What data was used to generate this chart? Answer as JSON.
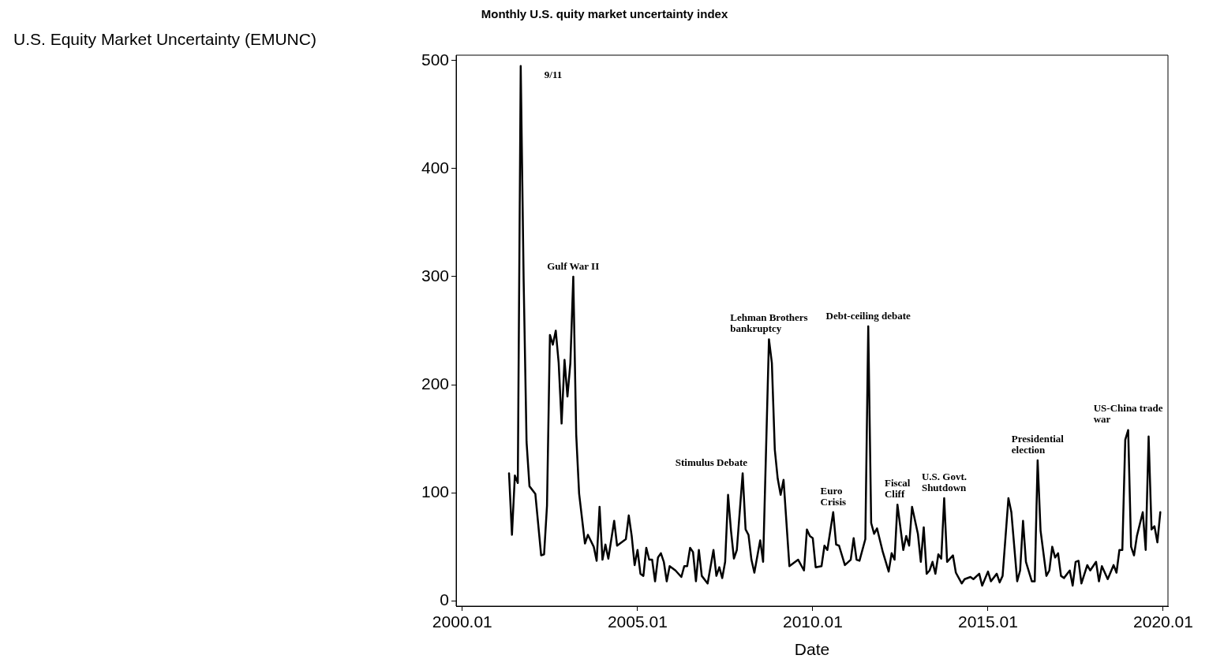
{
  "chart_data": {
    "type": "line",
    "title": "Monthly U.S. quity market uncertainty index",
    "xlabel": "Date",
    "x": [
      "2001-05",
      "2001-06",
      "2001-07",
      "2001-08",
      "2001-09",
      "2001-10",
      "2001-11",
      "2001-12",
      "2002-02",
      "2002-04",
      "2002-05",
      "2002-06",
      "2002-07",
      "2002-08",
      "2002-09",
      "2002-10",
      "2002-11",
      "2002-12",
      "2003-01",
      "2003-02",
      "2003-03",
      "2003-04",
      "2003-05",
      "2003-07",
      "2003-08",
      "2003-10",
      "2003-11",
      "2003-12",
      "2004-01",
      "2004-02",
      "2004-03",
      "2004-05",
      "2004-06",
      "2004-09",
      "2004-10",
      "2004-11",
      "2004-12",
      "2005-01",
      "2005-02",
      "2005-03",
      "2005-04",
      "2005-05",
      "2005-06",
      "2005-07",
      "2005-08",
      "2005-09",
      "2005-10",
      "2005-11",
      "2005-12",
      "2006-02",
      "2006-04",
      "2006-05",
      "2006-06",
      "2006-07",
      "2006-08",
      "2006-09",
      "2006-10",
      "2006-11",
      "2007-01",
      "2007-03",
      "2007-04",
      "2007-05",
      "2007-06",
      "2007-07",
      "2007-08",
      "2007-09",
      "2007-10",
      "2007-11",
      "2008-01",
      "2008-02",
      "2008-03",
      "2008-04",
      "2008-05",
      "2008-07",
      "2008-08",
      "2008-10",
      "2008-11",
      "2008-12",
      "2009-01",
      "2009-02",
      "2009-03",
      "2009-05",
      "2009-08",
      "2009-10",
      "2009-11",
      "2009-12",
      "2010-01",
      "2010-02",
      "2010-04",
      "2010-05",
      "2010-06",
      "2010-08",
      "2010-09",
      "2010-10",
      "2010-12",
      "2011-02",
      "2011-03",
      "2011-04",
      "2011-05",
      "2011-07",
      "2011-08",
      "2011-09",
      "2011-10",
      "2011-11",
      "2012-01",
      "2012-03",
      "2012-04",
      "2012-05",
      "2012-06",
      "2012-08",
      "2012-09",
      "2012-10",
      "2012-11",
      "2013-01",
      "2013-02",
      "2013-03",
      "2013-04",
      "2013-05",
      "2013-06",
      "2013-07",
      "2013-08",
      "2013-09",
      "2013-10",
      "2013-11",
      "2014-01",
      "2014-02",
      "2014-04",
      "2014-05",
      "2014-07",
      "2014-08",
      "2014-10",
      "2014-11",
      "2015-01",
      "2015-02",
      "2015-04",
      "2015-05",
      "2015-06",
      "2015-08",
      "2015-09",
      "2015-11",
      "2015-12",
      "2016-01",
      "2016-02",
      "2016-04",
      "2016-05",
      "2016-06",
      "2016-07",
      "2016-09",
      "2016-10",
      "2016-11",
      "2016-12",
      "2017-01",
      "2017-02",
      "2017-03",
      "2017-05",
      "2017-06",
      "2017-07",
      "2017-08",
      "2017-09",
      "2017-11",
      "2017-12",
      "2018-02",
      "2018-03",
      "2018-04",
      "2018-06",
      "2018-08",
      "2018-09",
      "2018-10",
      "2018-11",
      "2018-12",
      "2019-01",
      "2019-02",
      "2019-03",
      "2019-04",
      "2019-06",
      "2019-07",
      "2019-08",
      "2019-09",
      "2019-10",
      "2019-11",
      "2019-12"
    ],
    "values": [
      118,
      61,
      116,
      109,
      495,
      297,
      147,
      106,
      99,
      42,
      43,
      88,
      246,
      237,
      250,
      220,
      164,
      223,
      189,
      220,
      300,
      154,
      99,
      53,
      61,
      50,
      37,
      87,
      38,
      52,
      39,
      74,
      51,
      57,
      79,
      60,
      33,
      47,
      25,
      23,
      49,
      38,
      38,
      18,
      40,
      44,
      36,
      18,
      32,
      28,
      22,
      32,
      32,
      49,
      45,
      18,
      47,
      23,
      16,
      47,
      23,
      31,
      21,
      36,
      98,
      65,
      39,
      47,
      118,
      66,
      61,
      38,
      26,
      56,
      36,
      242,
      220,
      140,
      113,
      98,
      112,
      32,
      38,
      28,
      66,
      60,
      58,
      31,
      32,
      51,
      47,
      82,
      52,
      51,
      33,
      38,
      58,
      38,
      37,
      57,
      254,
      72,
      62,
      67,
      45,
      27,
      44,
      38,
      89,
      47,
      60,
      51,
      87,
      62,
      36,
      68,
      25,
      28,
      36,
      25,
      43,
      39,
      95,
      36,
      42,
      26,
      16,
      20,
      22,
      20,
      25,
      14,
      27,
      18,
      25,
      17,
      23,
      95,
      82,
      18,
      28,
      74,
      36,
      18,
      18,
      130,
      65,
      23,
      28,
      50,
      40,
      44,
      23,
      21,
      28,
      14,
      36,
      37,
      16,
      33,
      28,
      36,
      18,
      32,
      20,
      33,
      26,
      47,
      47,
      149,
      158,
      50,
      42,
      60,
      82,
      47,
      152,
      66,
      69,
      54,
      82
    ],
    "color": "#000000",
    "xlim": [
      "1999-10-28",
      "2020-02-20"
    ],
    "xticks": [
      {
        "value": "2000-01",
        "label": "2000.01"
      },
      {
        "value": "2005-01",
        "label": "2005.01"
      },
      {
        "value": "2010-01",
        "label": "2010.01"
      },
      {
        "value": "2015-01",
        "label": "2015.01"
      },
      {
        "value": "2020-01",
        "label": "2020.01"
      }
    ],
    "ylim": [
      -5,
      505
    ],
    "yticks": [
      0,
      100,
      200,
      300,
      400,
      500
    ],
    "annotations": [
      "U.S. Equity Market Uncertainty (EMUNC)",
      {
        "text": "9/11",
        "x": "2001-09",
        "y": 495
      },
      {
        "text": "Gulf War II",
        "x": "2003-03",
        "y": 300
      },
      {
        "text": "Stimulus Debate",
        "x": "2008-01",
        "y": 118
      },
      {
        "text": "Lehman Brothers\nbankruptcy",
        "x": "2008-10",
        "y": 242
      },
      {
        "text": "Euro\nCrisis",
        "x": "2010-08",
        "y": 82
      },
      {
        "text": "Debt-ceiling debate",
        "x": "2011-08",
        "y": 254
      },
      {
        "text": "Fiscal\nCliff",
        "x": "2012-06",
        "y": 89
      },
      {
        "text": "U.S. Govt.\nShutdown",
        "x": "2013-10",
        "y": 95
      },
      {
        "text": "Presidential\nelection",
        "x": "2016-06",
        "y": 130
      },
      {
        "text": "US-China trade\nwar",
        "x": "2019-01",
        "y": 158
      }
    ],
    "grid": false,
    "legend": false
  }
}
